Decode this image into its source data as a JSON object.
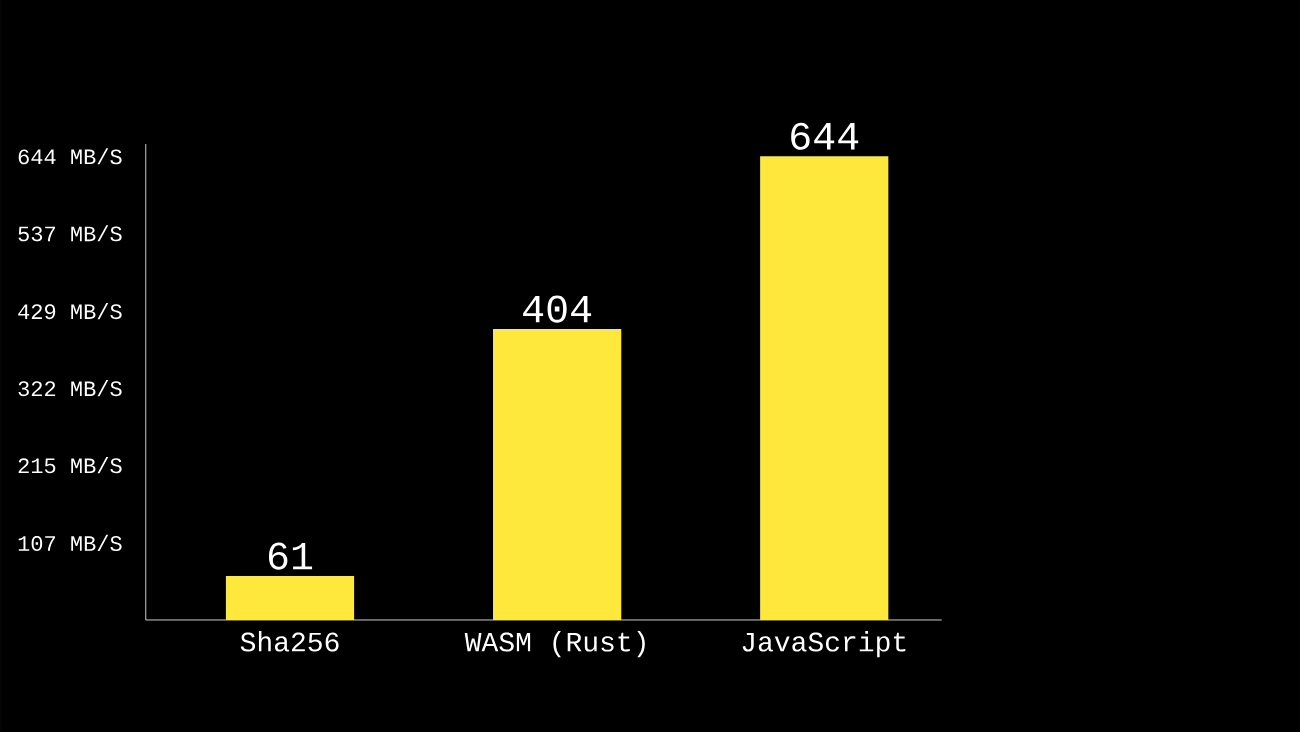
{
  "chart_data": {
    "type": "bar",
    "categories": [
      "Sha256",
      "WASM (Rust)",
      "JavaScript"
    ],
    "values": [
      61,
      404,
      644
    ],
    "color": "#ffe83c",
    "ylim": [
      0,
      661
    ],
    "yticks": [
      {
        "value": 107,
        "label": "107 MB/S"
      },
      {
        "value": 215,
        "label": "215 MB/S"
      },
      {
        "value": 322,
        "label": "322 MB/S"
      },
      {
        "value": 429,
        "label": "429 MB/S"
      },
      {
        "value": 537,
        "label": "537 MB/S"
      },
      {
        "value": 644,
        "label": "644 MB/S"
      }
    ],
    "data_labels": true,
    "grid": false
  }
}
